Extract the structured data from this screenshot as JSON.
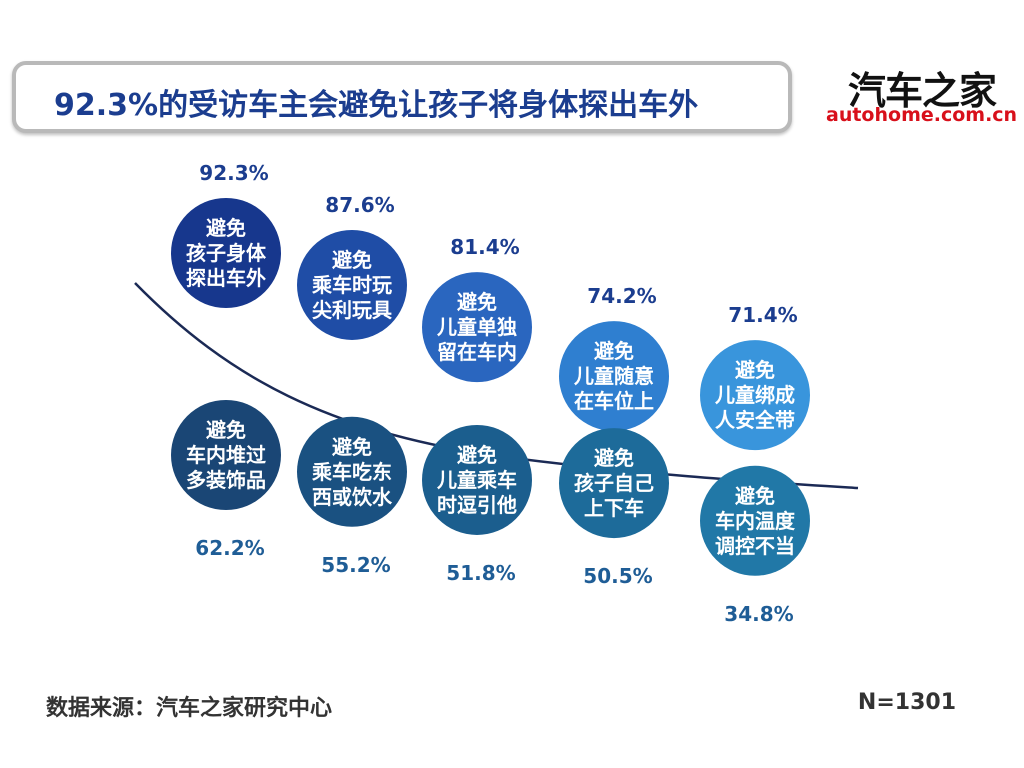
{
  "title": "92.3%的受访车主会避免让孩子将身体探出车外",
  "logo": {
    "cn": "汽车之家",
    "en": "autohome.com.cn"
  },
  "source": "数据来源：汽车之家研究中心",
  "sample_size": "N=1301",
  "colors": {
    "title_text": "#1b3d8f",
    "top_row_circles": [
      "#17378d",
      "#1f4da6",
      "#2a66bf",
      "#2f7fd0",
      "#3995dc"
    ],
    "bottom_row_circles": [
      "#1a4675",
      "#1a5181",
      "#1b5e8e",
      "#1d6b9a",
      "#2178a7"
    ],
    "top_row_pct": "#1b3d8f",
    "bottom_row_pct": "#1f5d96",
    "divider_curve": "#1b2a55",
    "logo_en": "#d8101b"
  },
  "chart_data": {
    "type": "bubble",
    "unit": "%",
    "groups": [
      {
        "row": "top",
        "items": [
          {
            "label": [
              "避免",
              "孩子身体",
              "探出车外"
            ],
            "value": 92.3,
            "value_text": "92.3%"
          },
          {
            "label": [
              "避免",
              "乘车时玩",
              "尖利玩具"
            ],
            "value": 87.6,
            "value_text": "87.6%"
          },
          {
            "label": [
              "避免",
              "儿童单独",
              "留在车内"
            ],
            "value": 81.4,
            "value_text": "81.4%"
          },
          {
            "label": [
              "避免",
              "儿童随意",
              "在车位上"
            ],
            "value": 74.2,
            "value_text": "74.2%"
          },
          {
            "label": [
              "避免",
              "儿童绑成",
              "人安全带"
            ],
            "value": 71.4,
            "value_text": "71.4%"
          }
        ]
      },
      {
        "row": "bottom",
        "items": [
          {
            "label": [
              "避免",
              "车内堆过",
              "多装饰品"
            ],
            "value": 62.2,
            "value_text": "62.2%"
          },
          {
            "label": [
              "避免",
              "乘车吃东",
              "西或饮水"
            ],
            "value": 55.2,
            "value_text": "55.2%"
          },
          {
            "label": [
              "避免",
              "儿童乘车",
              "时逗引他"
            ],
            "value": 51.8,
            "value_text": "51.8%"
          },
          {
            "label": [
              "避免",
              "孩子自己",
              "上下车"
            ],
            "value": 50.5,
            "value_text": "50.5%"
          },
          {
            "label": [
              "避免",
              "车内温度",
              "调控不当"
            ],
            "value": 34.8,
            "value_text": "34.8%"
          }
        ]
      }
    ]
  }
}
